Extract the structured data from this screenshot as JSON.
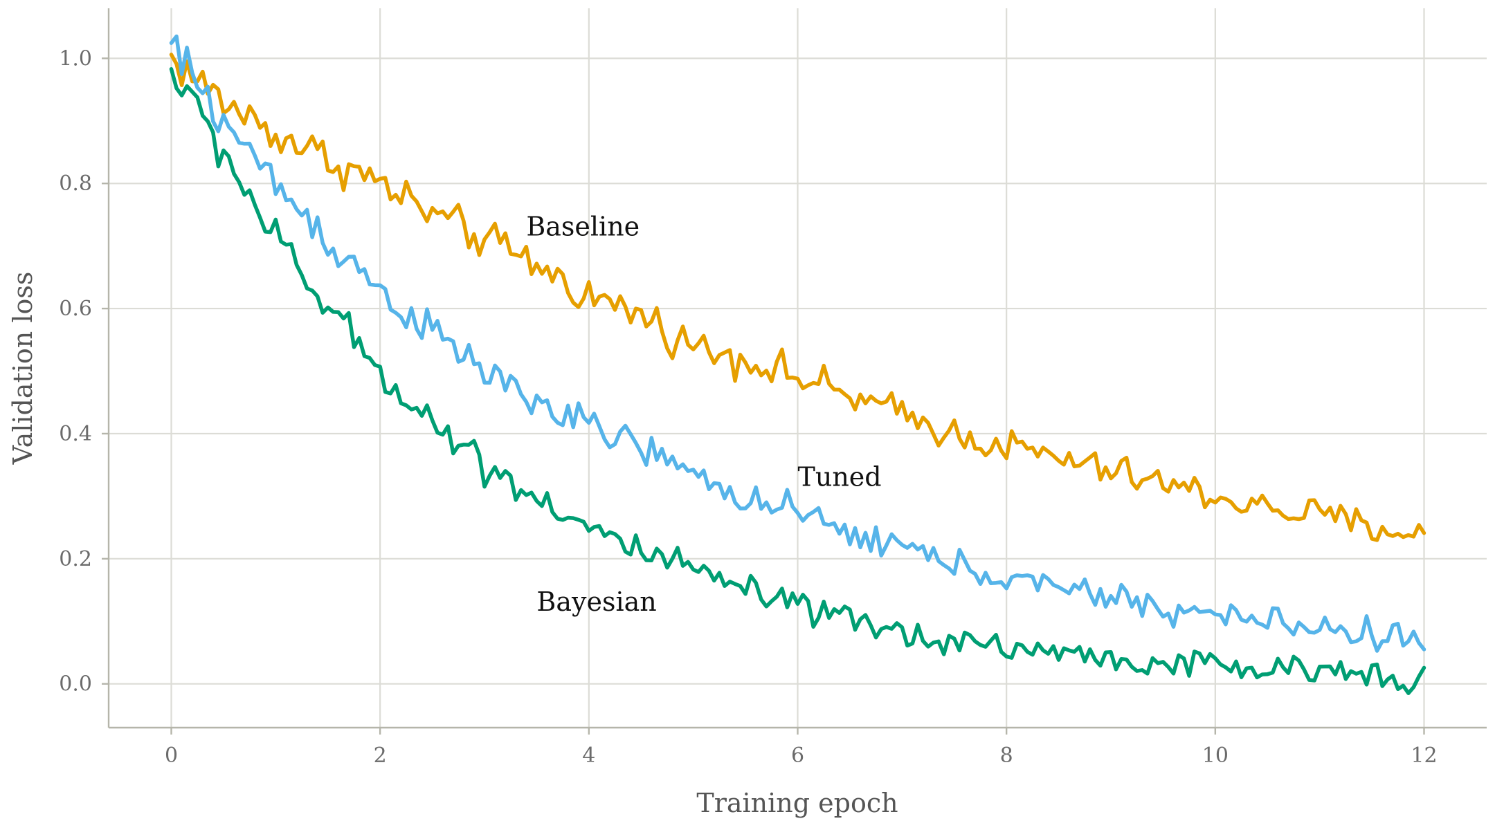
{
  "chart_data": {
    "type": "line",
    "title": "",
    "xlabel": "Training epoch",
    "ylabel": "Validation loss",
    "xlim": [
      -0.6,
      12.6
    ],
    "ylim": [
      -0.07,
      1.08
    ],
    "xticks": [
      0,
      2,
      4,
      6,
      8,
      10,
      12
    ],
    "xtick_labels": [
      "0",
      "2",
      "4",
      "6",
      "8",
      "10",
      "12"
    ],
    "yticks": [
      0.0,
      0.2,
      0.4,
      0.6,
      0.8,
      1.0
    ],
    "ytick_labels": [
      "0.0",
      "0.2",
      "0.4",
      "0.6",
      "0.8",
      "1.0"
    ],
    "grid": true,
    "legend": "none",
    "series": [
      {
        "name": "Baseline",
        "color": "#e69f00",
        "label_at": [
          3.4,
          0.73
        ],
        "x": [
          0,
          0.5,
          1,
          1.5,
          2,
          2.5,
          3,
          3.5,
          4,
          4.5,
          5,
          5.5,
          6,
          6.5,
          7,
          7.5,
          8,
          8.5,
          9,
          9.5,
          10,
          10.5,
          11,
          11.5,
          12
        ],
        "values": [
          1.0,
          0.93,
          0.88,
          0.84,
          0.8,
          0.75,
          0.71,
          0.67,
          0.62,
          0.59,
          0.54,
          0.52,
          0.49,
          0.46,
          0.43,
          0.4,
          0.38,
          0.36,
          0.34,
          0.32,
          0.3,
          0.28,
          0.27,
          0.25,
          0.24
        ]
      },
      {
        "name": "Tuned",
        "color": "#56b4e9",
        "label_at": [
          6.0,
          0.33
        ],
        "x": [
          0,
          0.5,
          1,
          1.5,
          2,
          2.5,
          3,
          3.5,
          4,
          4.5,
          5,
          5.5,
          6,
          6.5,
          7,
          7.5,
          8,
          8.5,
          9,
          9.5,
          10,
          10.5,
          11,
          11.5,
          12
        ],
        "values": [
          1.02,
          0.9,
          0.8,
          0.71,
          0.63,
          0.56,
          0.5,
          0.45,
          0.41,
          0.38,
          0.33,
          0.3,
          0.27,
          0.24,
          0.22,
          0.19,
          0.17,
          0.15,
          0.14,
          0.12,
          0.11,
          0.1,
          0.09,
          0.08,
          0.07
        ]
      },
      {
        "name": "Bayesian",
        "color": "#009e73",
        "label_at": [
          3.5,
          0.13
        ],
        "x": [
          0,
          0.5,
          1,
          1.5,
          2,
          2.5,
          3,
          3.5,
          4,
          4.5,
          5,
          5.5,
          6,
          6.5,
          7,
          7.5,
          8,
          8.5,
          9,
          9.5,
          10,
          10.5,
          11,
          11.5,
          12
        ],
        "values": [
          0.98,
          0.85,
          0.71,
          0.6,
          0.5,
          0.42,
          0.35,
          0.3,
          0.25,
          0.21,
          0.18,
          0.15,
          0.12,
          0.1,
          0.08,
          0.07,
          0.06,
          0.05,
          0.04,
          0.03,
          0.03,
          0.02,
          0.02,
          0.02,
          0.01
        ]
      }
    ]
  }
}
